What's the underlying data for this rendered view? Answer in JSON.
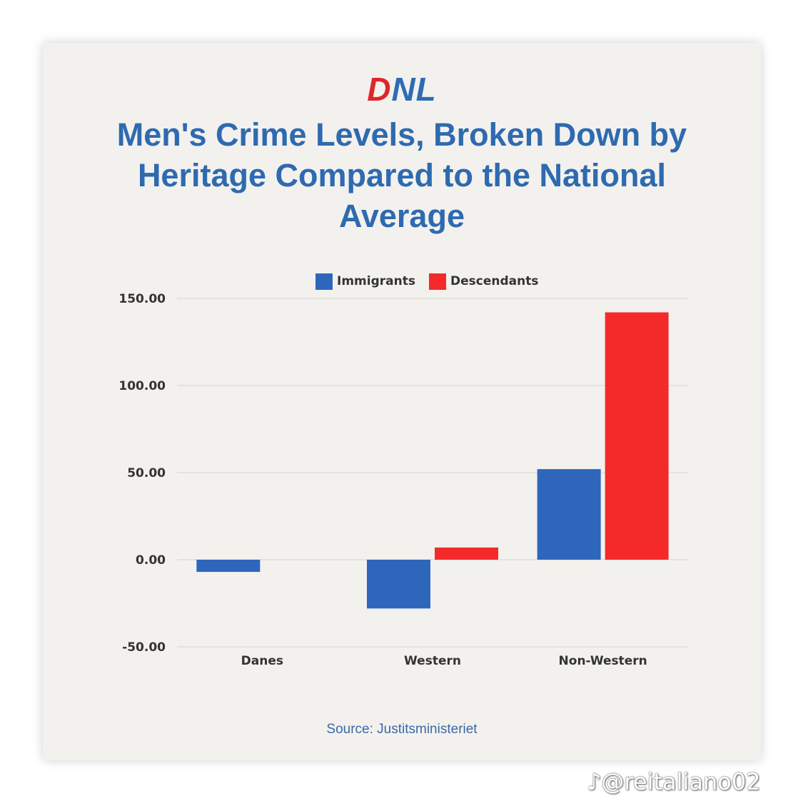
{
  "logo": {
    "d": "D",
    "nl": "NL"
  },
  "title": {
    "line1": "Men's Crime Levels, Broken Down by",
    "line2": "Heritage Compared to the National",
    "line3": "Average"
  },
  "source": "Source:  Justitsministeriet",
  "watermark": "♪@reitaliano02",
  "colors": {
    "immigrants": "#2e66bc",
    "descendants": "#f42a2a",
    "title": "#2e6ab0"
  },
  "chart_data": {
    "type": "bar",
    "title": "Men's Crime Levels, Broken Down by Heritage Compared to the National Average",
    "xlabel": "",
    "ylabel": "",
    "ylim": [
      -50,
      150
    ],
    "yticks": [
      150,
      100,
      50,
      0,
      -50
    ],
    "ytick_labels": [
      "150.00",
      "100.00",
      "50.00",
      "0.00",
      "-50.00"
    ],
    "grid": true,
    "legend_position": "top",
    "categories": [
      "Danes",
      "Western",
      "Non-Western"
    ],
    "series": [
      {
        "name": "Immigrants",
        "values": [
          -7,
          -28,
          52
        ]
      },
      {
        "name": "Descendants",
        "values": [
          null,
          7,
          142
        ]
      }
    ]
  }
}
